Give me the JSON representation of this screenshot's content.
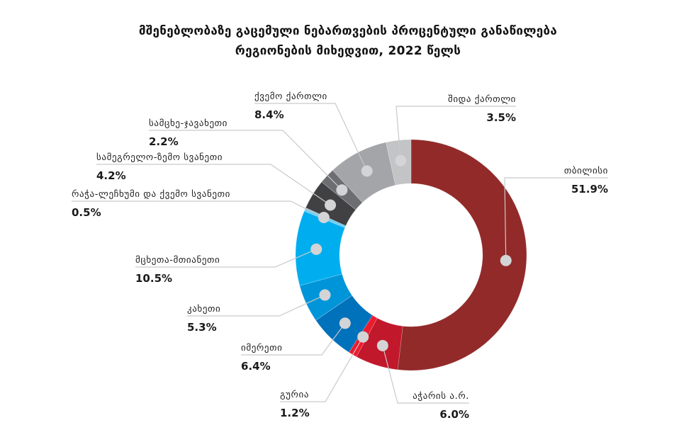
{
  "chart_data": {
    "type": "pie",
    "variant": "donut",
    "title": "მშენებლობაზე გაცემული ნებართვების პროცენტული განაწილება",
    "subtitle": "რეგიონების მიხედვით, 2022 წელს",
    "unit": "%",
    "start": "top",
    "direction": "clockwise",
    "slices": [
      {
        "name": "თბილისი",
        "value": 51.9,
        "display": "51.9%",
        "color": "#922a2a"
      },
      {
        "name": "აჭარის ა.რ.",
        "value": 6.0,
        "display": "6.0%",
        "color": "#c1182c"
      },
      {
        "name": "გურია",
        "value": 1.2,
        "display": "1.2%",
        "color": "#ec1c2e"
      },
      {
        "name": "იმერეთი",
        "value": 6.4,
        "display": "6.4%",
        "color": "#0071bb"
      },
      {
        "name": "კახეთი",
        "value": 5.3,
        "display": "5.3%",
        "color": "#0095d8"
      },
      {
        "name": "მცხეთა-მთიანეთი",
        "value": 10.5,
        "display": "10.5%",
        "color": "#00aeef"
      },
      {
        "name": "რაჭა-ლეჩხუმი და ქვემო სვანეთი",
        "value": 0.5,
        "display": "0.5%",
        "color": "#72cdf4"
      },
      {
        "name": "სამეგრელო-ზემო სვანეთი",
        "value": 4.2,
        "display": "4.2%",
        "color": "#414042"
      },
      {
        "name": "სამცხე-ჯავახეთი",
        "value": 2.2,
        "display": "2.2%",
        "color": "#6d6e71"
      },
      {
        "name": "ქვემო ქართლი",
        "value": 8.4,
        "display": "8.4%",
        "color": "#a4a5a8"
      },
      {
        "name": "შიდა ქართლი",
        "value": 3.5,
        "display": "3.5%",
        "color": "#c3c4c6"
      }
    ]
  }
}
